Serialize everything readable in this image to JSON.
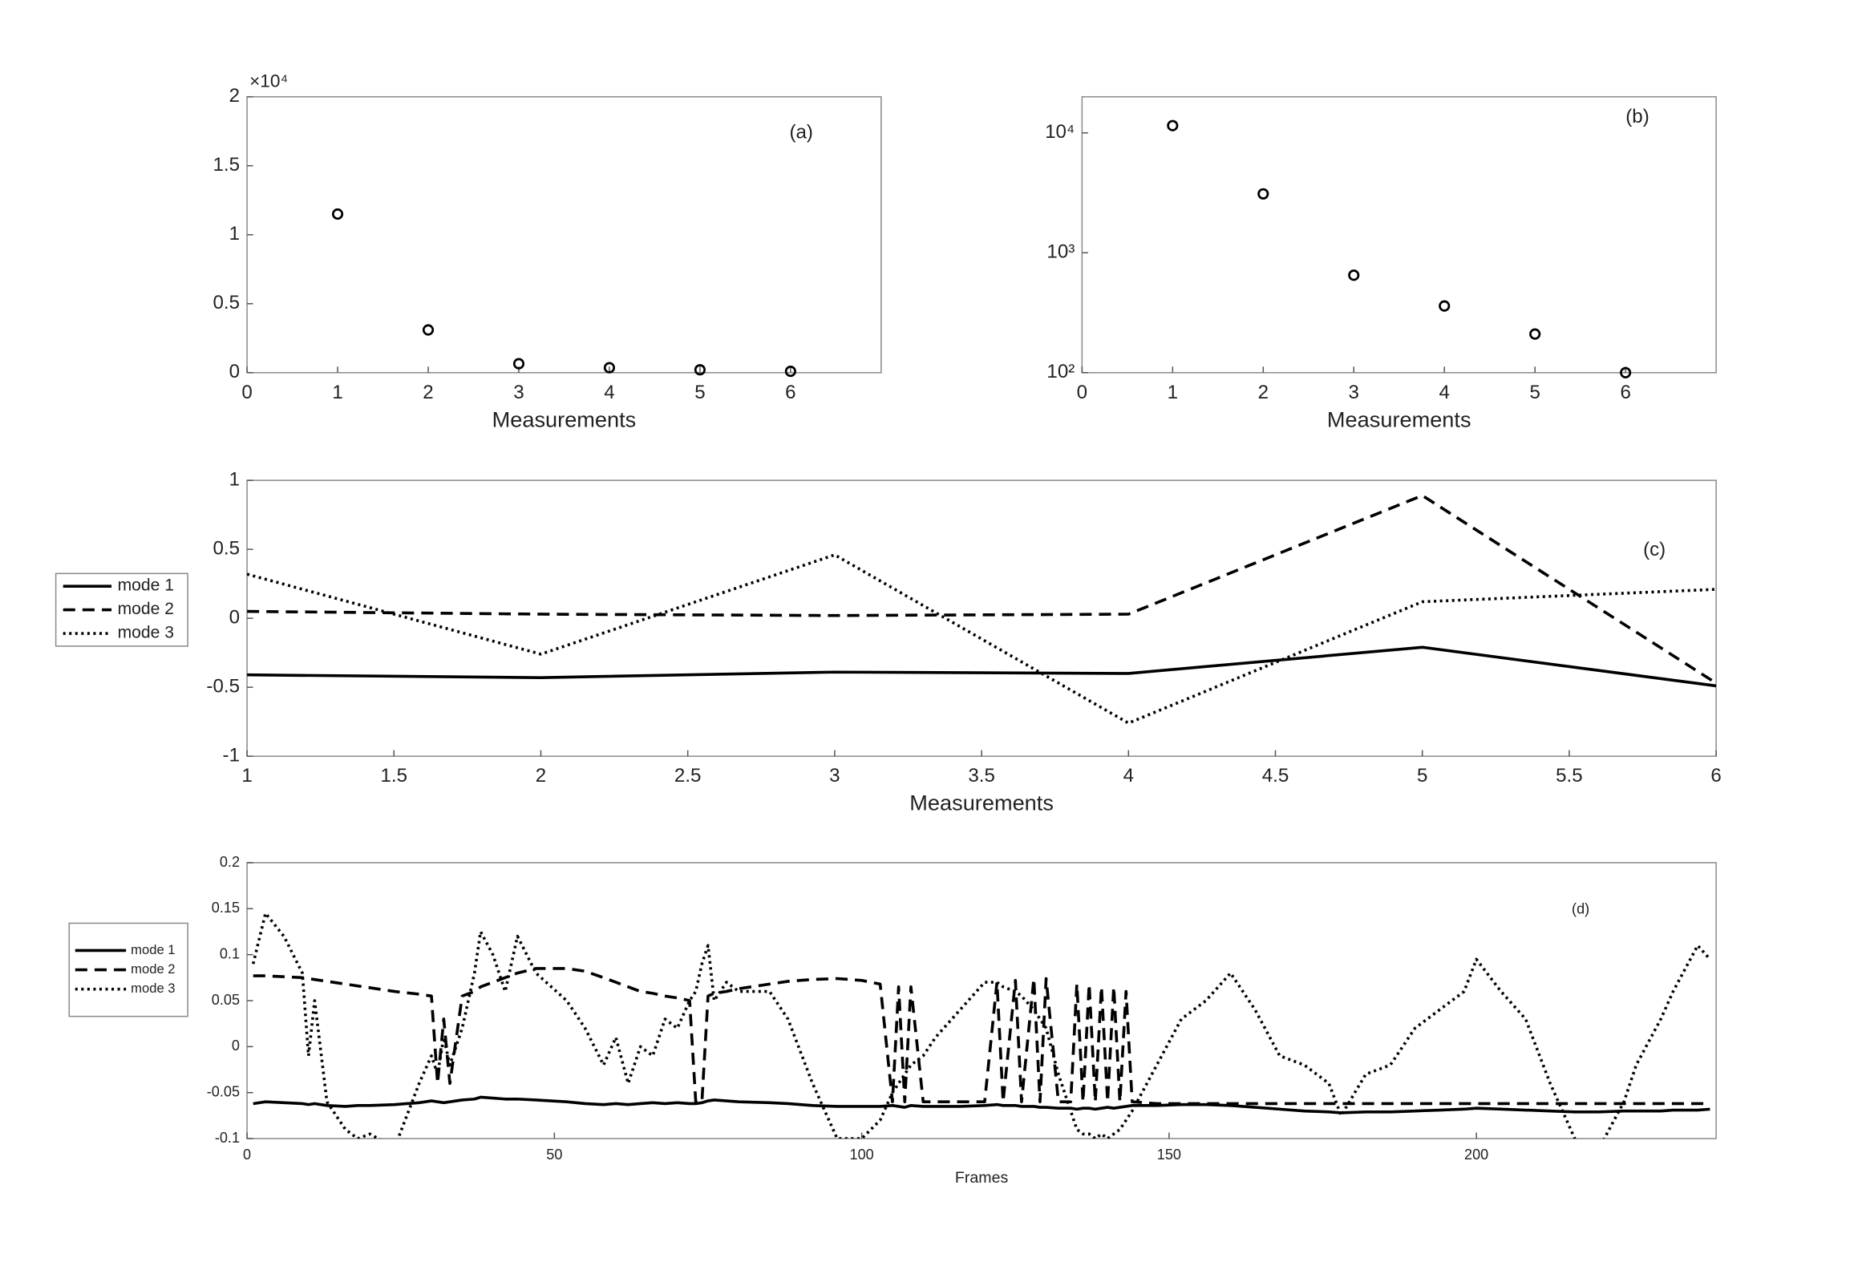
{
  "chart_data": [
    {
      "type": "scatter",
      "annotation": "(a)",
      "x_label": "Measurements",
      "axis_multiplier": "×10⁴",
      "x": [
        1,
        2,
        3,
        4,
        5,
        6
      ],
      "values": [
        11500,
        3100,
        650,
        360,
        210,
        100
      ],
      "color": "#000000",
      "xlim": [
        0,
        7
      ],
      "xticks": [
        0,
        1,
        2,
        3,
        4,
        5,
        6
      ],
      "ylim": [
        0,
        20000
      ],
      "yticks": [
        0,
        {
          "value": 5000,
          "label": "0.5"
        },
        {
          "value": 10000,
          "label": "1"
        },
        {
          "value": 15000,
          "label": "1.5"
        },
        {
          "value": 20000,
          "label": "2"
        }
      ]
    },
    {
      "type": "scatter",
      "annotation": "(b)",
      "x_label": "Measurements",
      "yscale": "log",
      "x": [
        1,
        2,
        3,
        4,
        5,
        6
      ],
      "values": [
        11500,
        3100,
        650,
        360,
        210,
        100
      ],
      "color": "#000000",
      "xlim": [
        0,
        7
      ],
      "xticks": [
        0,
        1,
        2,
        3,
        4,
        5,
        6
      ],
      "ylim": [
        100,
        20000
      ],
      "yticks": [
        {
          "value": 100,
          "label": "10²"
        },
        {
          "value": 1000,
          "label": "10³"
        },
        {
          "value": 10000,
          "label": "10⁴"
        }
      ]
    },
    {
      "type": "line",
      "annotation": "(c)",
      "x_label": "Measurements",
      "legend": "left",
      "x": [
        1,
        2,
        3,
        4,
        5,
        6
      ],
      "series": [
        {
          "name": "mode 1",
          "color": "#000000",
          "dash": "solid",
          "values": [
            -0.41,
            -0.43,
            -0.39,
            -0.4,
            -0.21,
            -0.49
          ]
        },
        {
          "name": "mode 2",
          "color": "#000000",
          "dash": "dashed",
          "values": [
            0.05,
            0.03,
            0.02,
            0.03,
            0.89,
            -0.47
          ]
        },
        {
          "name": "mode 3",
          "color": "#000000",
          "dash": "dotted",
          "values": [
            0.32,
            -0.26,
            0.46,
            -0.76,
            0.12,
            0.21
          ]
        }
      ],
      "xlim": [
        1,
        6
      ],
      "xticks": [
        1,
        1.5,
        2,
        2.5,
        3,
        3.5,
        4,
        4.5,
        5,
        5.5,
        6
      ],
      "ylim": [
        -1,
        1
      ],
      "yticks": [
        -1,
        -0.5,
        0,
        0.5,
        1
      ]
    },
    {
      "type": "line",
      "annotation": "(d)",
      "x_label": "Frames",
      "legend": "left",
      "x": [
        1,
        3,
        6,
        9,
        10,
        11,
        13,
        16,
        18,
        20,
        24,
        28,
        30,
        31,
        32,
        33,
        35,
        37,
        38,
        40,
        42,
        44,
        47,
        52,
        55,
        58,
        60,
        62,
        64,
        66,
        68,
        70,
        72,
        73,
        74,
        75,
        76,
        78,
        80,
        85,
        88,
        92,
        96,
        100,
        103,
        105,
        106,
        107,
        108,
        110,
        112,
        116,
        120,
        122,
        123,
        125,
        126,
        128,
        129,
        130,
        132,
        134,
        135,
        136,
        137,
        138,
        139,
        140,
        141,
        142,
        143,
        144,
        148,
        152,
        156,
        160,
        164,
        168,
        172,
        176,
        178,
        182,
        186,
        190,
        194,
        198,
        200,
        204,
        208,
        212,
        216,
        220,
        224,
        226,
        230,
        232,
        236,
        238
      ],
      "series": [
        {
          "name": "mode 1",
          "color": "#000000",
          "dash": "solid",
          "values": [
            -0.062,
            -0.06,
            -0.061,
            -0.062,
            -0.063,
            -0.062,
            -0.064,
            -0.065,
            -0.064,
            -0.064,
            -0.063,
            -0.061,
            -0.059,
            -0.06,
            -0.061,
            -0.06,
            -0.058,
            -0.057,
            -0.055,
            -0.056,
            -0.057,
            -0.057,
            -0.058,
            -0.06,
            -0.062,
            -0.063,
            -0.062,
            -0.063,
            -0.062,
            -0.061,
            -0.062,
            -0.061,
            -0.062,
            -0.062,
            -0.061,
            -0.059,
            -0.058,
            -0.059,
            -0.06,
            -0.061,
            -0.062,
            -0.064,
            -0.065,
            -0.065,
            -0.065,
            -0.064,
            -0.065,
            -0.066,
            -0.064,
            -0.065,
            -0.065,
            -0.065,
            -0.064,
            -0.063,
            -0.064,
            -0.064,
            -0.065,
            -0.065,
            -0.066,
            -0.066,
            -0.067,
            -0.067,
            -0.068,
            -0.067,
            -0.067,
            -0.068,
            -0.067,
            -0.066,
            -0.067,
            -0.066,
            -0.065,
            -0.064,
            -0.064,
            -0.063,
            -0.063,
            -0.064,
            -0.066,
            -0.068,
            -0.07,
            -0.071,
            -0.072,
            -0.071,
            -0.071,
            -0.07,
            -0.069,
            -0.068,
            -0.067,
            -0.068,
            -0.069,
            -0.07,
            -0.071,
            -0.071,
            -0.07,
            -0.07,
            -0.07,
            -0.069,
            -0.069,
            -0.068
          ]
        },
        {
          "name": "mode 2",
          "color": "#000000",
          "dash": "dashed",
          "values": [
            0.077,
            0.077,
            0.076,
            0.075,
            0.074,
            0.073,
            0.071,
            0.068,
            0.066,
            0.064,
            0.06,
            0.057,
            0.055,
            -0.04,
            0.03,
            -0.04,
            0.055,
            0.06,
            0.065,
            0.07,
            0.075,
            0.08,
            0.085,
            0.085,
            0.082,
            0.075,
            0.07,
            0.065,
            0.06,
            0.058,
            0.055,
            0.053,
            0.05,
            -0.06,
            -0.06,
            0.055,
            0.058,
            0.06,
            0.063,
            0.068,
            0.071,
            0.073,
            0.074,
            0.072,
            0.068,
            -0.06,
            0.065,
            -0.06,
            0.065,
            -0.06,
            -0.06,
            -0.06,
            -0.06,
            0.07,
            -0.06,
            0.072,
            -0.06,
            0.074,
            -0.06,
            0.074,
            -0.06,
            -0.06,
            0.068,
            -0.06,
            0.068,
            -0.06,
            0.065,
            -0.06,
            0.065,
            -0.06,
            0.06,
            -0.06,
            -0.062,
            -0.062,
            -0.062,
            -0.062,
            -0.062,
            -0.062,
            -0.062,
            -0.062,
            -0.062,
            -0.062,
            -0.062,
            -0.062,
            -0.062,
            -0.062,
            -0.062,
            -0.062,
            -0.062,
            -0.062,
            -0.062,
            -0.062,
            -0.062,
            -0.062,
            -0.062,
            -0.062,
            -0.062,
            -0.062
          ]
        },
        {
          "name": "mode 3",
          "color": "#000000",
          "dash": "dotted",
          "values": [
            0.09,
            0.145,
            0.12,
            0.08,
            -0.01,
            0.05,
            -0.06,
            -0.09,
            -0.1,
            -0.095,
            -0.11,
            -0.04,
            -0.01,
            -0.03,
            0.01,
            -0.02,
            0.02,
            0.08,
            0.125,
            0.1,
            0.06,
            0.12,
            0.08,
            0.05,
            0.02,
            -0.02,
            0.01,
            -0.04,
            0,
            -0.01,
            0.03,
            0.02,
            0.05,
            0.06,
            0.09,
            0.11,
            0.05,
            0.07,
            0.06,
            0.06,
            0.03,
            -0.04,
            -0.1,
            -0.1,
            -0.08,
            -0.05,
            -0.04,
            -0.03,
            -0.02,
            -0.01,
            0.01,
            0.04,
            0.07,
            0.07,
            0.065,
            0.06,
            0.055,
            0.04,
            0.03,
            0.02,
            -0.03,
            -0.07,
            -0.09,
            -0.095,
            -0.095,
            -0.1,
            -0.095,
            -0.1,
            -0.095,
            -0.09,
            -0.08,
            -0.07,
            -0.02,
            0.03,
            0.05,
            0.08,
            0.04,
            -0.01,
            -0.02,
            -0.04,
            -0.075,
            -0.03,
            -0.02,
            0.02,
            0.04,
            0.06,
            0.095,
            0.06,
            0.03,
            -0.04,
            -0.1,
            -0.11,
            -0.06,
            -0.02,
            0.03,
            0.06,
            0.11,
            0.095
          ]
        }
      ],
      "xlim": [
        0,
        239
      ],
      "xticks": [
        0,
        50,
        100,
        150,
        200
      ],
      "ylim": [
        -0.1,
        0.2
      ],
      "yticks": [
        -0.1,
        -0.05,
        0,
        0.05,
        0.1,
        0.15,
        0.2
      ]
    }
  ]
}
